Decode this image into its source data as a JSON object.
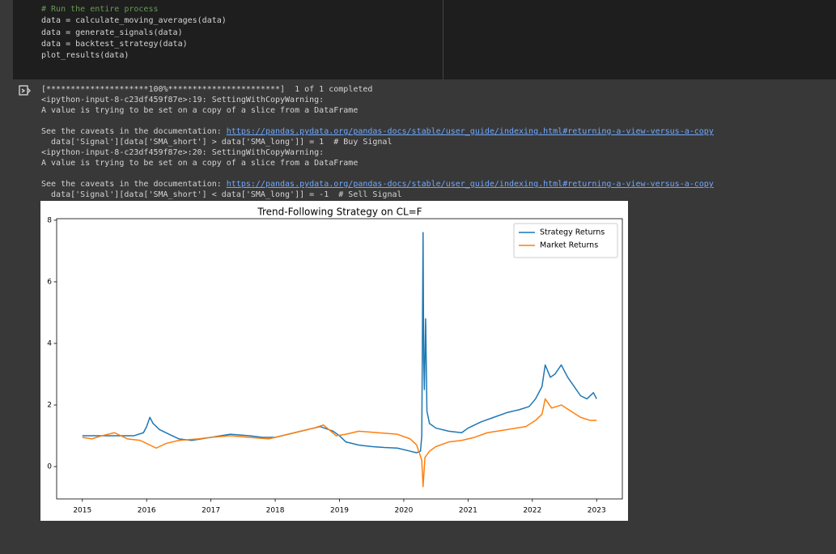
{
  "code_cell": {
    "lines": [
      "# Run the entire process",
      "data = calculate_moving_averages(data)",
      "data = generate_signals(data)",
      "data = backtest_strategy(data)",
      "plot_results(data)"
    ]
  },
  "output": {
    "blocks": [
      [
        {
          "text": "[*********************100%***********************]  1 of 1 completed"
        },
        {
          "text": "<ipython-input-8-c23df459f87e>:19: SettingWithCopyWarning:"
        },
        {
          "text": "A value is trying to be set on a copy of a slice from a DataFrame"
        }
      ],
      [
        {
          "text": "See the caveats in the documentation: ",
          "link": "https://pandas.pydata.org/pandas-docs/stable/user_guide/indexing.html#returning-a-view-versus-a-copy"
        },
        {
          "text": "  data['Signal'][data['SMA_short'] > data['SMA_long']] = 1  # Buy Signal"
        },
        {
          "text": "<ipython-input-8-c23df459f87e>:20: SettingWithCopyWarning:"
        },
        {
          "text": "A value is trying to be set on a copy of a slice from a DataFrame"
        }
      ],
      [
        {
          "text": "See the caveats in the documentation: ",
          "link": "https://pandas.pydata.org/pandas-docs/stable/user_guide/indexing.html#returning-a-view-versus-a-copy"
        },
        {
          "text": "  data['Signal'][data['SMA_short'] < data['SMA_long']] = -1  # Sell Signal"
        }
      ]
    ]
  },
  "chart_data": {
    "type": "line",
    "title": "Trend-Following Strategy on CL=F",
    "xlim": [
      2014.6,
      2023.4
    ],
    "xticks": [
      2015,
      2016,
      2017,
      2018,
      2019,
      2020,
      2021,
      2022,
      2023
    ],
    "ylim": [
      -1.05,
      8.05
    ],
    "yticks": [
      0,
      2,
      4,
      6,
      8
    ],
    "legend": "upper right",
    "grid": false,
    "series": [
      {
        "name": "Strategy Returns",
        "color": "#1f77b4",
        "x": [
          2015.0,
          2015.4,
          2015.8,
          2015.95,
          2016.0,
          2016.05,
          2016.1,
          2016.2,
          2016.35,
          2016.5,
          2016.7,
          2017.0,
          2017.3,
          2017.6,
          2017.8,
          2018.0,
          2018.3,
          2018.5,
          2018.7,
          2018.9,
          2019.0,
          2019.1,
          2019.3,
          2019.5,
          2019.7,
          2019.9,
          2020.1,
          2020.2,
          2020.26,
          2020.28,
          2020.3,
          2020.31,
          2020.32,
          2020.34,
          2020.36,
          2020.4,
          2020.5,
          2020.7,
          2020.9,
          2021.0,
          2021.2,
          2021.4,
          2021.6,
          2021.8,
          2021.95,
          2022.05,
          2022.15,
          2022.2,
          2022.28,
          2022.35,
          2022.45,
          2022.55,
          2022.65,
          2022.75,
          2022.85,
          2022.95,
          2023.0
        ],
        "values": [
          1.0,
          1.0,
          1.0,
          1.1,
          1.3,
          1.6,
          1.4,
          1.2,
          1.05,
          0.9,
          0.85,
          0.95,
          1.05,
          1.0,
          0.95,
          0.95,
          1.1,
          1.2,
          1.3,
          1.15,
          1.0,
          0.8,
          0.7,
          0.65,
          0.62,
          0.6,
          0.5,
          0.45,
          0.5,
          1.0,
          7.6,
          3.5,
          2.5,
          4.8,
          1.8,
          1.4,
          1.25,
          1.15,
          1.1,
          1.25,
          1.45,
          1.6,
          1.75,
          1.85,
          1.95,
          2.2,
          2.6,
          3.3,
          2.9,
          3.0,
          3.3,
          2.9,
          2.6,
          2.3,
          2.2,
          2.4,
          2.2
        ]
      },
      {
        "name": "Market Returns",
        "color": "#ff7f0e",
        "x": [
          2015.0,
          2015.15,
          2015.3,
          2015.5,
          2015.7,
          2015.9,
          2016.0,
          2016.15,
          2016.3,
          2016.5,
          2016.8,
          2017.0,
          2017.3,
          2017.6,
          2017.9,
          2018.1,
          2018.4,
          2018.6,
          2018.75,
          2018.95,
          2019.1,
          2019.3,
          2019.6,
          2019.9,
          2020.1,
          2020.2,
          2020.25,
          2020.28,
          2020.3,
          2020.33,
          2020.4,
          2020.5,
          2020.7,
          2020.9,
          2021.1,
          2021.3,
          2021.6,
          2021.9,
          2022.05,
          2022.15,
          2022.2,
          2022.3,
          2022.45,
          2022.6,
          2022.75,
          2022.9,
          2023.0
        ],
        "values": [
          0.95,
          0.9,
          1.0,
          1.1,
          0.9,
          0.85,
          0.75,
          0.6,
          0.75,
          0.85,
          0.9,
          0.95,
          1.0,
          0.95,
          0.9,
          1.0,
          1.15,
          1.25,
          1.35,
          1.0,
          1.05,
          1.15,
          1.1,
          1.05,
          0.9,
          0.7,
          0.4,
          0.2,
          -0.65,
          0.3,
          0.5,
          0.65,
          0.8,
          0.85,
          0.95,
          1.1,
          1.2,
          1.3,
          1.5,
          1.7,
          2.2,
          1.9,
          2.0,
          1.8,
          1.6,
          1.5,
          1.5
        ]
      }
    ]
  }
}
